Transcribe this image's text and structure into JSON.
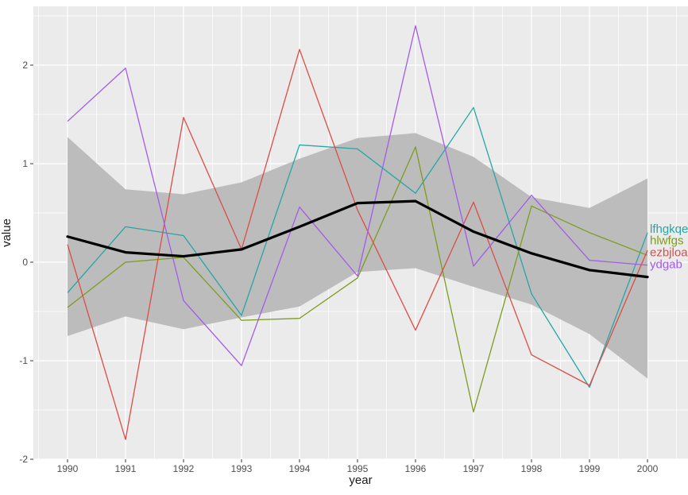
{
  "colors": {
    "background": "#ffffff",
    "panel": "#ebebeb",
    "grid": "#ffffff",
    "tick_text": "#4d4d4d",
    "tick_mark": "#333333",
    "axis_title": "#1a1a1a"
  },
  "chart_data": {
    "type": "line",
    "title": "",
    "xlabel": "year",
    "ylabel": "value",
    "legend_position": "direct-labels-right",
    "grid_on": true,
    "xlim": [
      1989.4,
      2000.7
    ],
    "ylim": [
      -2.0,
      2.6
    ],
    "x_ticks": [
      1990,
      1991,
      1992,
      1993,
      1994,
      1995,
      1996,
      1997,
      1998,
      1999,
      2000
    ],
    "y_ticks": [
      -2,
      -1,
      0,
      1,
      2
    ],
    "grid": {
      "x_minor": [
        1989.5,
        1990.5,
        1991.5,
        1992.5,
        1993.5,
        1994.5,
        1995.5,
        1996.5,
        1997.5,
        1998.5,
        1999.5,
        2000.5
      ],
      "y_minor": [
        -1.5,
        -0.5,
        0.5,
        1.5,
        2.5
      ]
    },
    "x": [
      1990,
      1991,
      1992,
      1993,
      1994,
      1995,
      1996,
      1997,
      1998,
      1999,
      2000
    ],
    "series": [
      {
        "name": "lfhgkqe",
        "color": "#26a6a6",
        "label_y": 0.34,
        "values": [
          -0.31,
          0.36,
          0.27,
          -0.54,
          1.19,
          1.15,
          0.7,
          1.57,
          -0.32,
          -1.27,
          0.3
        ]
      },
      {
        "name": "hlwfgs",
        "color": "#7d9c1e",
        "label_y": 0.22,
        "values": [
          -0.46,
          0.0,
          0.05,
          -0.59,
          -0.57,
          -0.16,
          1.17,
          -1.52,
          0.57,
          0.3,
          0.07
        ]
      },
      {
        "name": "ezbjloa",
        "color": "#db4d45",
        "label_y": 0.1,
        "values": [
          0.18,
          -1.8,
          1.47,
          0.13,
          2.16,
          0.53,
          -0.69,
          0.61,
          -0.94,
          -1.25,
          0.12
        ]
      },
      {
        "name": "ydgab",
        "color": "#a25ce8",
        "label_y": -0.02,
        "values": [
          1.43,
          1.97,
          -0.39,
          -1.05,
          0.56,
          -0.14,
          2.4,
          -0.04,
          0.68,
          0.02,
          -0.03
        ]
      }
    ],
    "smooth": {
      "name": "mean-line",
      "color": "#000000",
      "values": [
        0.26,
        0.1,
        0.06,
        0.13,
        0.36,
        0.6,
        0.62,
        0.31,
        0.09,
        -0.08,
        -0.15
      ]
    },
    "ribbon": {
      "color": "#bcbcbc",
      "upper": [
        1.27,
        0.74,
        0.69,
        0.81,
        1.05,
        1.26,
        1.31,
        1.07,
        0.66,
        0.55,
        0.85
      ],
      "lower": [
        -0.75,
        -0.55,
        -0.68,
        -0.56,
        -0.45,
        -0.1,
        -0.06,
        -0.25,
        -0.43,
        -0.73,
        -1.18
      ]
    }
  }
}
